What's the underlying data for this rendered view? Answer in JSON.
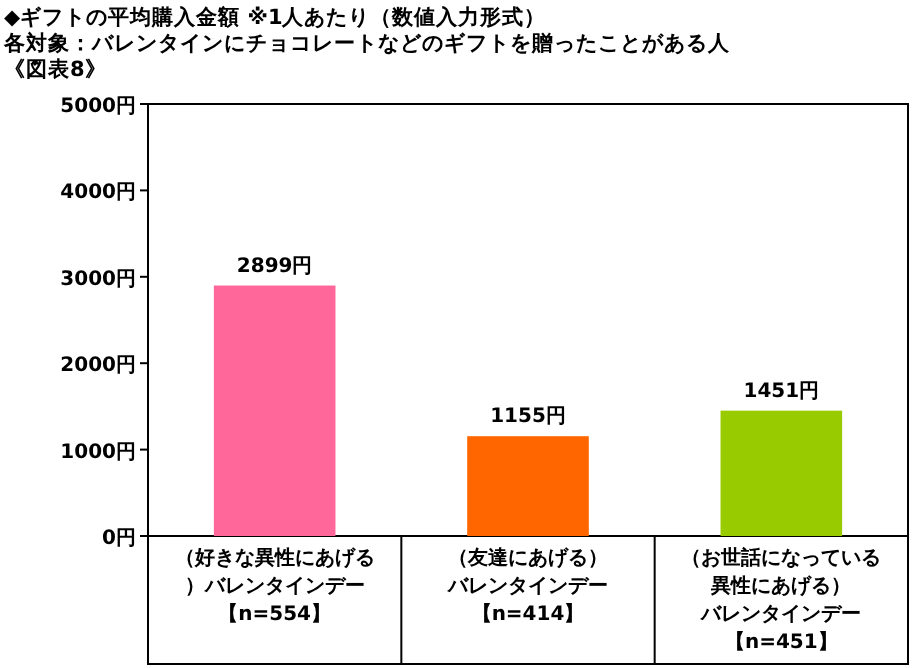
{
  "chart_data": {
    "type": "bar",
    "title": "◆ギフトの平均購入金額 ※1人あたり（数値入力形式）",
    "subtitle": "各対象：バレンタインにチョコレートなどのギフトを贈ったことがある人",
    "annotations": [
      "《図表8》"
    ],
    "categories": [
      "（好きな異性にあげる）バレンタインデー【n=554】",
      "（友達にあげる）バレンタインデー【n=414】",
      "（お世話になっている異性にあげる）バレンタインデー【n=451】"
    ],
    "values": [
      2899,
      1155,
      1451
    ],
    "colors": [
      "#ff6699",
      "#ff6600",
      "#99cc00"
    ],
    "value_labels": [
      "2899円",
      "1155円",
      "1451円"
    ],
    "ylim": [
      0,
      5000
    ],
    "yticks": [
      {
        "value": 0,
        "label": "0円"
      },
      {
        "value": 1000,
        "label": "1000円"
      },
      {
        "value": 2000,
        "label": "2000円"
      },
      {
        "value": 3000,
        "label": "3000円"
      },
      {
        "value": 4000,
        "label": "4000円"
      },
      {
        "value": 5000,
        "label": "5000円"
      }
    ],
    "grid": false
  }
}
